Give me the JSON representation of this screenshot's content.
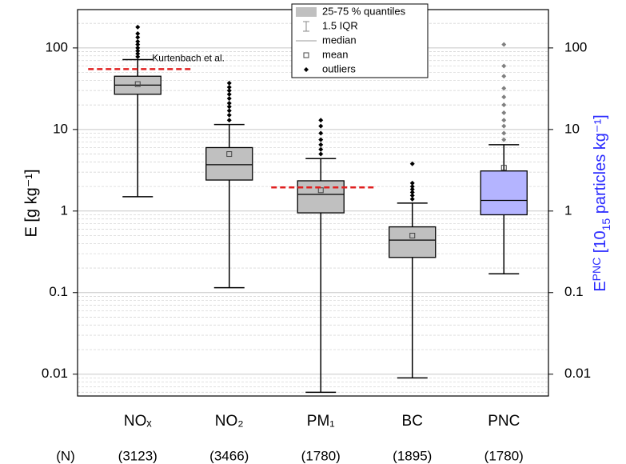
{
  "chart_data": {
    "type": "box",
    "categories": [
      "NOₓ",
      "NO₂",
      "PM₁",
      "BC",
      "PNC"
    ],
    "category_colors": [
      "#000000",
      "#000000",
      "#000000",
      "#000000",
      "#2a2aff"
    ],
    "ylabel": "E [g kg⁻¹]",
    "y2label": [
      "E",
      "PNC",
      " [10",
      "15",
      " particles kg⁻¹]"
    ],
    "y2color": "#2a2aff",
    "ylim": [
      0.0054,
      295
    ],
    "yticks": [
      0.01,
      0.1,
      1,
      10,
      100
    ],
    "y2lim": [
      0.0054,
      295
    ],
    "y2ticks": [
      0.01,
      0.1,
      1,
      10,
      100
    ],
    "log_scale": true,
    "grid": true,
    "minor_grid": true,
    "boxes": [
      {
        "low": 1.5,
        "q1": 27,
        "median": 35,
        "q3": 45,
        "high": 72,
        "mean": 36,
        "color": "#c0c0c0",
        "outliers": [
          78,
          85,
          92,
          100,
          110,
          120,
          135,
          150,
          180
        ]
      },
      {
        "low": 0.115,
        "q1": 2.4,
        "median": 3.7,
        "q3": 6.0,
        "high": 11.5,
        "mean": 5.0,
        "color": "#c0c0c0",
        "outliers": [
          13,
          15,
          17,
          19,
          21,
          24,
          27,
          30,
          33,
          37
        ]
      },
      {
        "low": 0.006,
        "q1": 0.95,
        "median": 1.6,
        "q3": 2.35,
        "high": 4.4,
        "mean": 1.8,
        "color": "#c0c0c0",
        "outliers": [
          5,
          5.7,
          6.5,
          7.5,
          9,
          11,
          13
        ]
      },
      {
        "low": 0.009,
        "q1": 0.27,
        "median": 0.44,
        "q3": 0.64,
        "high": 1.25,
        "mean": 0.5,
        "color": "#c0c0c0",
        "outliers": [
          1.4,
          1.55,
          1.7,
          1.85,
          2.0,
          2.2,
          3.8
        ]
      },
      {
        "low": 0.17,
        "q1": 0.9,
        "median": 1.35,
        "q3": 3.1,
        "high": 6.5,
        "mean": 3.4,
        "color": "#b4b4ff",
        "axis": "y2",
        "outliers": [
          7.5,
          9,
          11,
          13,
          16,
          20,
          25,
          32,
          45,
          60,
          110
        ]
      }
    ],
    "reference_lines": [
      {
        "category": 0,
        "value": 55,
        "label": "Kurtenbach et al.",
        "color": "#e02020"
      },
      {
        "category": 2,
        "value": 1.95,
        "color": "#e02020"
      }
    ],
    "n_label": "(N)",
    "n": {
      "values": [
        3123,
        3466,
        1780,
        1895,
        1780
      ],
      "value_labels": [
        "(3123)",
        "(3466)",
        "(1780)",
        "(1895)",
        "(1780)"
      ]
    },
    "legend": [
      "25-75 % quantiles",
      "1.5 IQR",
      "median",
      "mean",
      "outliers"
    ]
  }
}
